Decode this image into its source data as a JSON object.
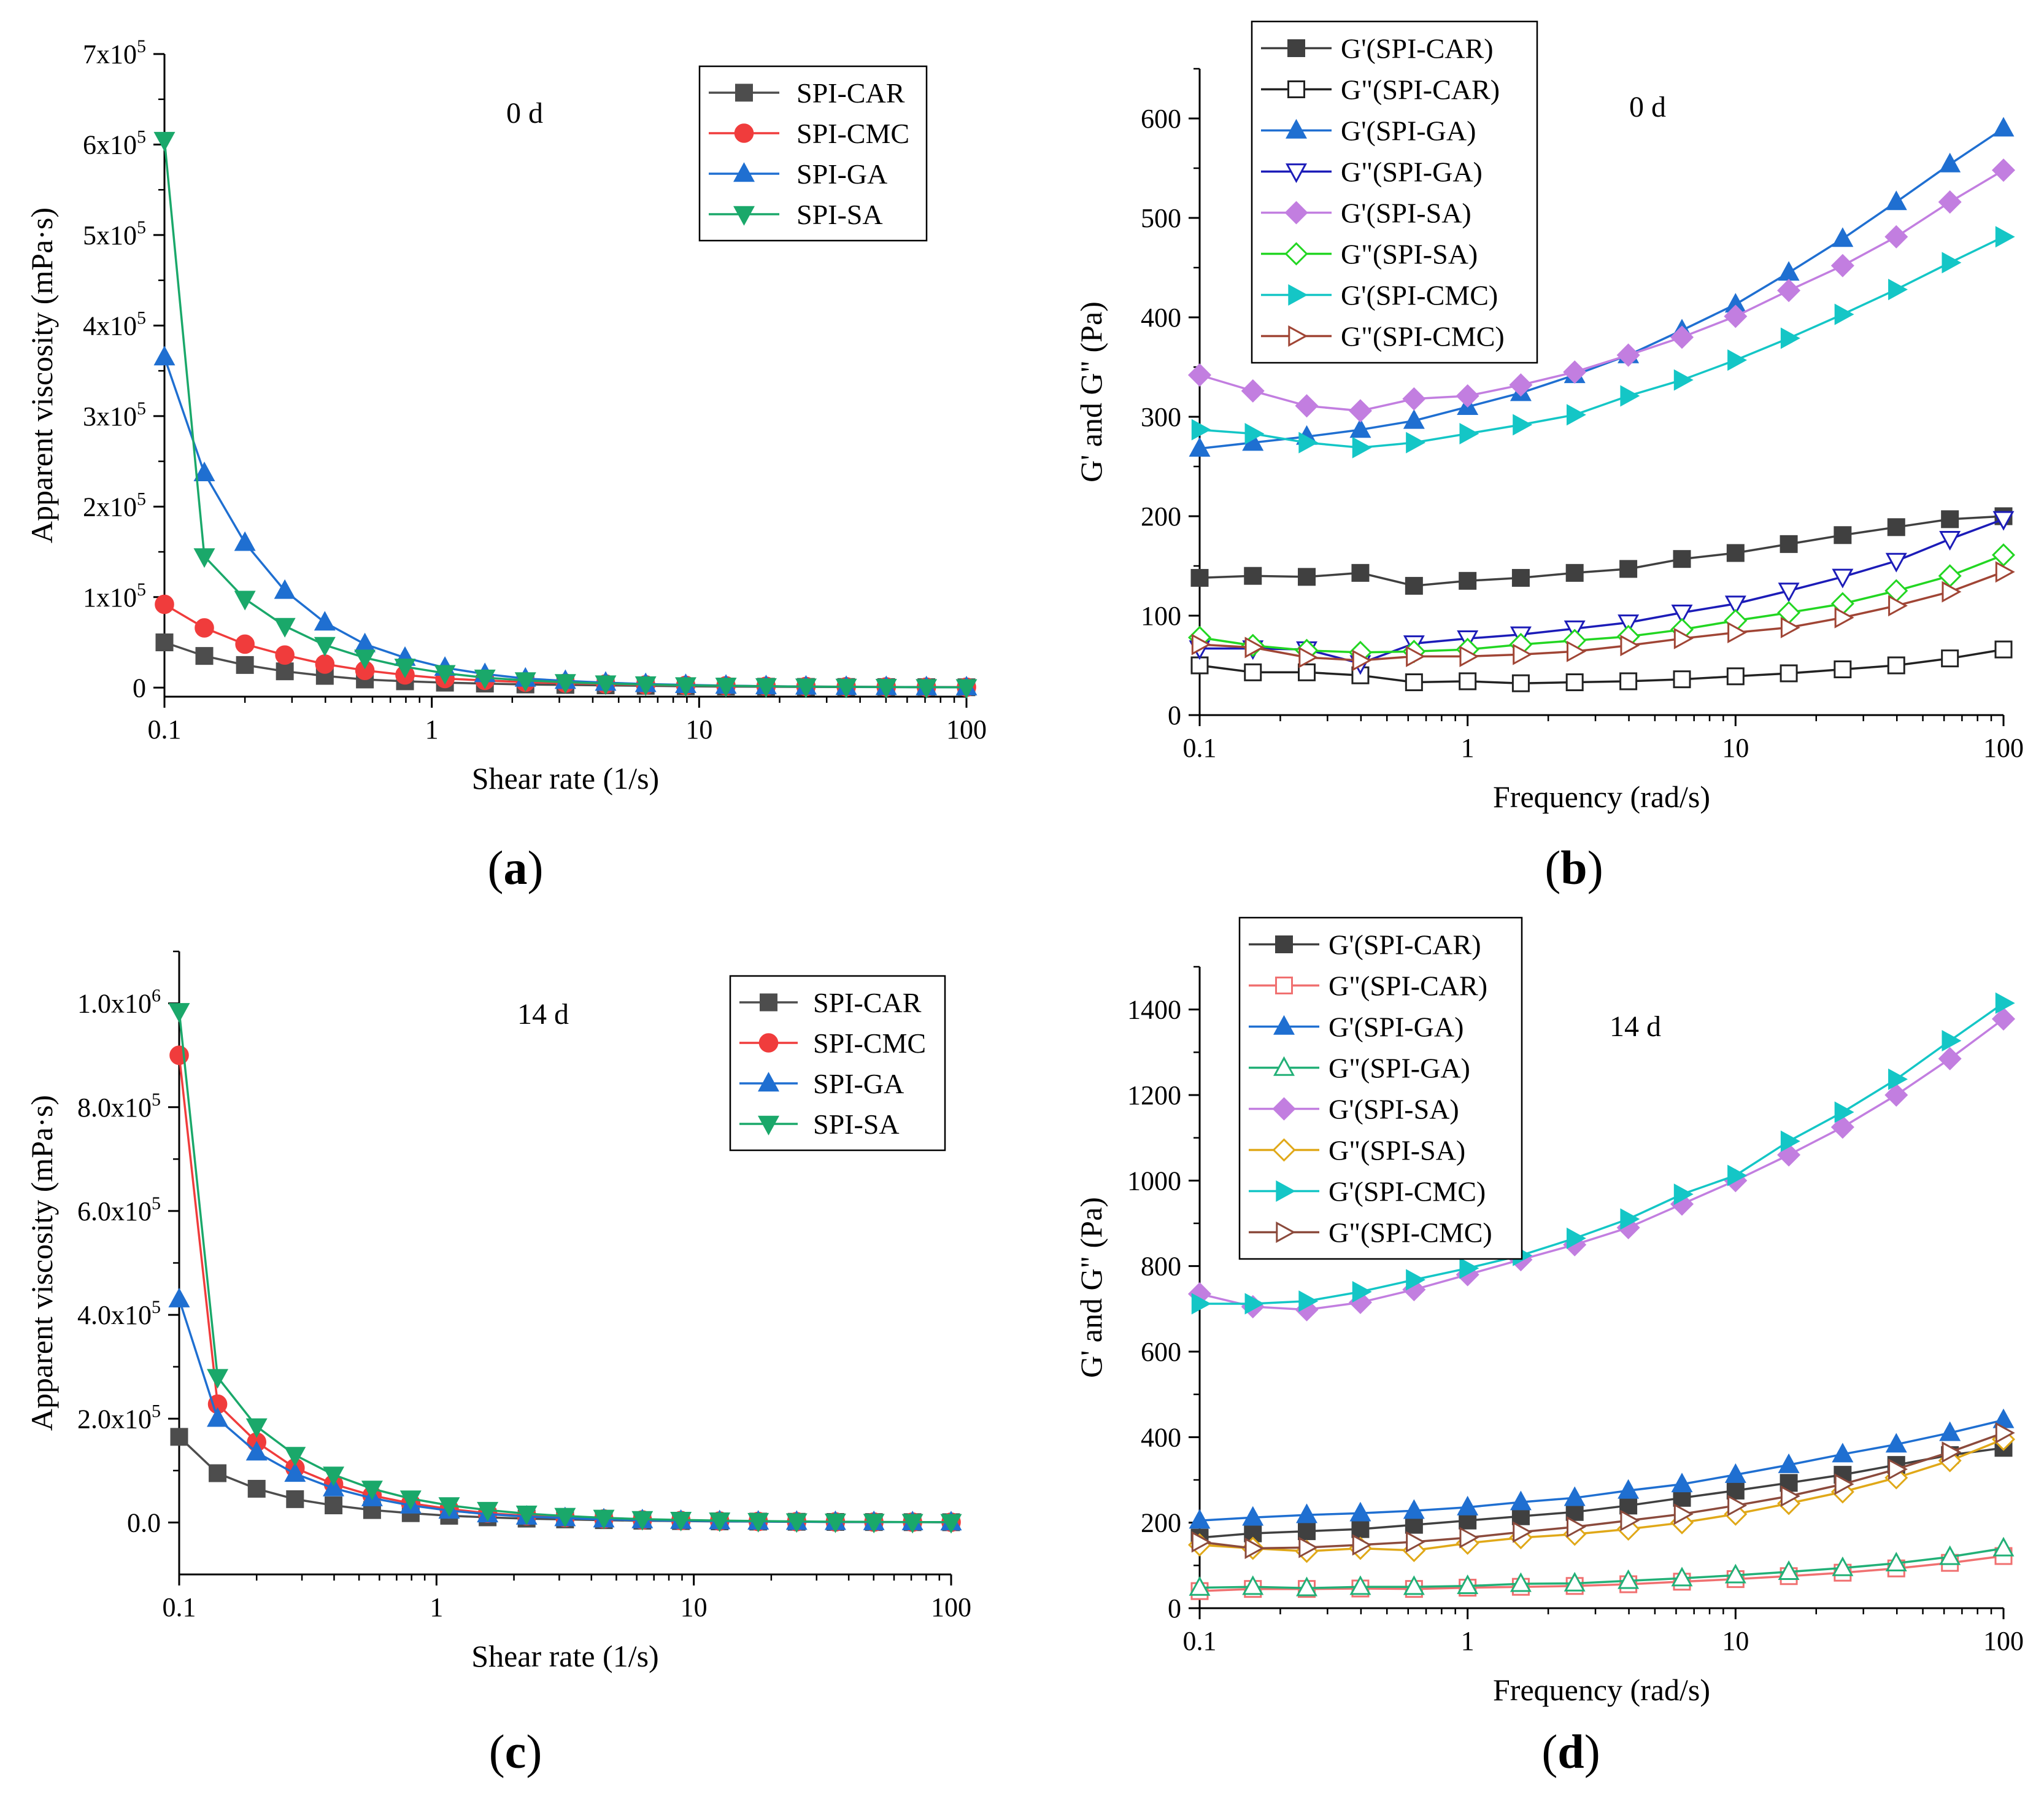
{
  "chart_data": [
    {
      "type": "line",
      "panel": "(a)",
      "annotation": "0 d",
      "xlabel": "Shear rate (1/s)",
      "ylabel": "Apparent viscosity (mPa·s)",
      "xscale": "log",
      "xlim": [
        0.1,
        100
      ],
      "ylim": [
        -10000,
        700000
      ],
      "xticks": [
        0.1,
        1,
        10,
        100
      ],
      "xtick_labels": [
        "0.1",
        "1",
        "10",
        "100"
      ],
      "yticks": [
        0,
        100000,
        200000,
        300000,
        400000,
        500000,
        600000,
        700000
      ],
      "ytick_labels": [
        "0",
        "1x10",
        "2x10",
        "3x10",
        "4x10",
        "5x10",
        "6x10",
        "7x10"
      ],
      "ytick_exponents": [
        "",
        "5",
        "5",
        "5",
        "5",
        "5",
        "5",
        "5"
      ],
      "legend_position": "top-right",
      "x": [
        0.1,
        0.141,
        0.2,
        0.282,
        0.398,
        0.562,
        0.794,
        1.12,
        1.58,
        2.24,
        3.16,
        4.47,
        6.31,
        8.91,
        12.6,
        17.8,
        25.1,
        35.5,
        50.1,
        70.8,
        100
      ],
      "series": [
        {
          "name": "SPI-CAR",
          "color": "#4d4d4d",
          "marker": "square",
          "filled": true,
          "values": [
            50000,
            35000,
            25000,
            18000,
            13000,
            9000,
            7000,
            5500,
            4500,
            3500,
            3000,
            2500,
            2000,
            1500,
            1200,
            1000,
            800,
            700,
            600,
            500,
            400
          ]
        },
        {
          "name": "SPI-CMC",
          "color": "#f03c3c",
          "marker": "circle",
          "filled": true,
          "values": [
            92000,
            66000,
            48000,
            36000,
            26000,
            19000,
            14000,
            10000,
            8000,
            6000,
            5000,
            4000,
            3000,
            2500,
            2000,
            1500,
            1200,
            1000,
            800,
            600,
            500
          ]
        },
        {
          "name": "SPI-GA",
          "color": "#1f6fd1",
          "marker": "triangle-up",
          "filled": true,
          "values": [
            365000,
            237000,
            160000,
            107000,
            72000,
            48000,
            33000,
            22000,
            15000,
            10000,
            7500,
            5500,
            4000,
            3000,
            2200,
            1600,
            1200,
            900,
            700,
            500,
            400
          ]
        },
        {
          "name": "SPI-SA",
          "color": "#1aa86a",
          "marker": "triangle-down",
          "filled": true,
          "values": [
            605000,
            145000,
            98000,
            68000,
            47000,
            33000,
            23000,
            16000,
            11000,
            8000,
            6000,
            4500,
            3500,
            2500,
            2000,
            1500,
            1100,
            900,
            700,
            500,
            400
          ]
        }
      ]
    },
    {
      "type": "line",
      "panel": "(b)",
      "annotation": "0 d",
      "xlabel": "Frequency (rad/s)",
      "ylabel": "G' and G\" (Pa)",
      "xscale": "log",
      "xlim": [
        0.1,
        100
      ],
      "ylim": [
        0,
        650
      ],
      "xticks": [
        0.1,
        1,
        10,
        100
      ],
      "xtick_labels": [
        "0.1",
        "1",
        "10",
        "100"
      ],
      "yticks": [
        0,
        100,
        200,
        300,
        400,
        500,
        600
      ],
      "ytick_labels": [
        "0",
        "100",
        "200",
        "300",
        "400",
        "500",
        "600"
      ],
      "legend_position": "top-left",
      "x": [
        0.1,
        0.158,
        0.251,
        0.398,
        0.631,
        1,
        1.58,
        2.51,
        3.98,
        6.31,
        10,
        15.8,
        25.1,
        39.8,
        63.1,
        100
      ],
      "series": [
        {
          "name": "G'(SPI-CAR)",
          "color": "#404040",
          "marker": "square",
          "filled": true,
          "values": [
            138,
            140,
            139,
            143,
            130,
            135,
            138,
            143,
            147,
            157,
            163,
            172,
            181,
            189,
            197,
            200
          ]
        },
        {
          "name": "G\"(SPI-CAR)",
          "color": "#222222",
          "marker": "square",
          "filled": false,
          "values": [
            50,
            43,
            43,
            40,
            33,
            34,
            32,
            33,
            34,
            36,
            39,
            42,
            46,
            50,
            57,
            66
          ]
        },
        {
          "name": "G'(SPI-GA)",
          "color": "#1f6fd1",
          "marker": "triangle-up",
          "filled": true,
          "values": [
            268,
            274,
            280,
            287,
            296,
            310,
            324,
            342,
            362,
            387,
            413,
            445,
            479,
            516,
            554,
            590
          ]
        },
        {
          "name": "G\"(SPI-GA)",
          "color": "#1c1cb8",
          "marker": "triangle-down",
          "filled": false,
          "values": [
            67,
            67,
            66,
            52,
            72,
            77,
            81,
            87,
            93,
            103,
            112,
            125,
            139,
            155,
            177,
            197
          ]
        },
        {
          "name": "G'(SPI-SA)",
          "color": "#c27ee0",
          "marker": "diamond",
          "filled": true,
          "values": [
            342,
            326,
            311,
            306,
            318,
            321,
            332,
            345,
            362,
            380,
            401,
            427,
            452,
            481,
            516,
            548
          ]
        },
        {
          "name": "G\"(SPI-SA)",
          "color": "#22d622",
          "marker": "diamond",
          "filled": false,
          "values": [
            78,
            70,
            65,
            63,
            64,
            66,
            71,
            75,
            79,
            86,
            95,
            103,
            112,
            125,
            140,
            161
          ]
        },
        {
          "name": "G'(SPI-CMC)",
          "color": "#14c6c6",
          "marker": "triangle-right",
          "filled": true,
          "values": [
            287,
            283,
            274,
            269,
            274,
            283,
            292,
            302,
            321,
            337,
            357,
            379,
            403,
            428,
            455,
            481
          ]
        },
        {
          "name": "G\"(SPI-CMC)",
          "color": "#a04535",
          "marker": "triangle-right",
          "filled": false,
          "values": [
            71,
            68,
            58,
            55,
            59,
            59,
            61,
            64,
            70,
            77,
            83,
            88,
            98,
            110,
            124,
            144
          ]
        }
      ]
    },
    {
      "type": "line",
      "panel": "(c)",
      "annotation": "14 d",
      "xlabel": "Shear rate (1/s)",
      "ylabel": "Apparent viscosity (mPa·s)",
      "xscale": "log",
      "xlim": [
        0.1,
        100
      ],
      "ylim": [
        -100000,
        1100000
      ],
      "xticks": [
        0.1,
        1,
        10,
        100
      ],
      "xtick_labels": [
        "0.1",
        "1",
        "10",
        "100"
      ],
      "yticks": [
        0,
        200000,
        400000,
        600000,
        800000,
        1000000
      ],
      "ytick_labels": [
        "0.0",
        "2.0x10",
        "4.0x10",
        "6.0x10",
        "8.0x10",
        "1.0x10"
      ],
      "ytick_exponents": [
        "",
        "5",
        "5",
        "5",
        "5",
        "6"
      ],
      "legend_position": "top-right",
      "x": [
        0.1,
        0.141,
        0.2,
        0.282,
        0.398,
        0.562,
        0.794,
        1.12,
        1.58,
        2.24,
        3.16,
        4.47,
        6.31,
        8.91,
        12.6,
        17.8,
        25.1,
        35.5,
        50.1,
        70.8,
        100
      ],
      "series": [
        {
          "name": "SPI-CAR",
          "color": "#4d4d4d",
          "marker": "square",
          "filled": true,
          "values": [
            165000,
            95000,
            65000,
            45000,
            33000,
            24000,
            18000,
            13000,
            10000,
            7500,
            6000,
            4500,
            3500,
            2800,
            2200,
            1800,
            1400,
            1100,
            900,
            700,
            600
          ]
        },
        {
          "name": "SPI-CMC",
          "color": "#f03c3c",
          "marker": "circle",
          "filled": true,
          "values": [
            900000,
            228000,
            155000,
            105000,
            74000,
            52000,
            37000,
            26000,
            18000,
            13000,
            9500,
            7000,
            5000,
            3800,
            2800,
            2100,
            1600,
            1200,
            900,
            700,
            600
          ]
        },
        {
          "name": "SPI-GA",
          "color": "#1f6fd1",
          "marker": "triangle-up",
          "filled": true,
          "values": [
            430000,
            200000,
            135000,
            94000,
            66000,
            47000,
            33000,
            23000,
            16000,
            11500,
            8500,
            6200,
            4500,
            3400,
            2600,
            1900,
            1500,
            1100,
            900,
            700,
            500
          ]
        },
        {
          "name": "SPI-SA",
          "color": "#1aa86a",
          "marker": "triangle-down",
          "filled": true,
          "values": [
            985000,
            280000,
            185000,
            130000,
            92000,
            65000,
            46000,
            33000,
            24000,
            17000,
            12500,
            9000,
            6500,
            5000,
            3700,
            2800,
            2100,
            1600,
            1200,
            900,
            700
          ]
        }
      ]
    },
    {
      "type": "line",
      "panel": "(d)",
      "annotation": "14 d",
      "xlabel": "Frequency (rad/s)",
      "ylabel": "G' and G\" (Pa)",
      "xscale": "log",
      "xlim": [
        0.1,
        100
      ],
      "ylim": [
        0,
        1500
      ],
      "xticks": [
        0.1,
        1,
        10,
        100
      ],
      "xtick_labels": [
        "0.1",
        "1",
        "10",
        "100"
      ],
      "yticks": [
        0,
        200,
        400,
        600,
        800,
        1000,
        1200,
        1400
      ],
      "ytick_labels": [
        "0",
        "200",
        "400",
        "600",
        "800",
        "1000",
        "1200",
        "1400"
      ],
      "legend_position": "top-left",
      "x": [
        0.1,
        0.158,
        0.251,
        0.398,
        0.631,
        1,
        1.58,
        2.51,
        3.98,
        6.31,
        10,
        15.8,
        25.1,
        39.8,
        63.1,
        100
      ],
      "series": [
        {
          "name": "G'(SPI-CAR)",
          "color": "#404040",
          "marker": "square",
          "filled": true,
          "values": [
            165,
            175,
            180,
            185,
            195,
            205,
            215,
            225,
            240,
            258,
            275,
            293,
            312,
            335,
            358,
            375
          ]
        },
        {
          "name": "G\"(SPI-CAR)",
          "color": "#f07070",
          "marker": "square",
          "filled": false,
          "values": [
            40,
            45,
            45,
            46,
            45,
            48,
            50,
            52,
            56,
            62,
            68,
            75,
            83,
            93,
            106,
            122
          ]
        },
        {
          "name": "G'(SPI-GA)",
          "color": "#1f6fd1",
          "marker": "triangle-up",
          "filled": true,
          "values": [
            205,
            212,
            218,
            222,
            228,
            236,
            248,
            258,
            275,
            290,
            312,
            335,
            360,
            383,
            410,
            440
          ]
        },
        {
          "name": "G\"(SPI-GA)",
          "color": "#22b077",
          "marker": "triangle-up",
          "filled": false,
          "values": [
            48,
            50,
            47,
            50,
            50,
            52,
            57,
            58,
            64,
            70,
            77,
            85,
            94,
            105,
            120,
            140
          ]
        },
        {
          "name": "G'(SPI-SA)",
          "color": "#c27ee0",
          "marker": "diamond",
          "filled": true,
          "values": [
            735,
            705,
            698,
            715,
            745,
            780,
            815,
            850,
            890,
            945,
            1000,
            1060,
            1125,
            1200,
            1285,
            1378
          ]
        },
        {
          "name": "G\"(SPI-SA)",
          "color": "#e0a818",
          "marker": "diamond",
          "filled": false,
          "values": [
            148,
            140,
            133,
            140,
            135,
            152,
            165,
            173,
            185,
            200,
            220,
            245,
            272,
            305,
            345,
            395
          ]
        },
        {
          "name": "G'(SPI-CMC)",
          "color": "#14c6c6",
          "marker": "triangle-right",
          "filled": true,
          "values": [
            712,
            712,
            718,
            740,
            768,
            795,
            825,
            865,
            910,
            968,
            1012,
            1092,
            1160,
            1237,
            1327,
            1415
          ]
        },
        {
          "name": "G\"(SPI-CMC)",
          "color": "#8b4a3c",
          "marker": "triangle-right",
          "filled": false,
          "values": [
            155,
            140,
            142,
            148,
            155,
            165,
            178,
            190,
            205,
            220,
            240,
            262,
            290,
            325,
            365,
            410
          ]
        }
      ]
    }
  ]
}
